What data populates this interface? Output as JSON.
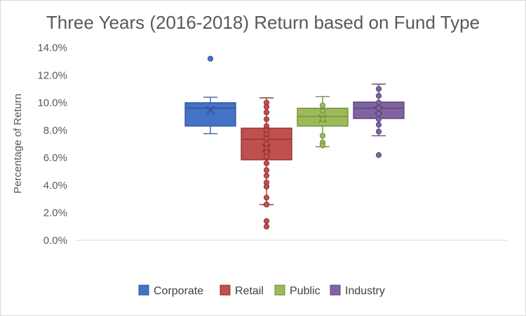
{
  "chart_data": {
    "type": "box",
    "title": "Three Years (2016-2018) Return based on Fund Type",
    "ylabel": "Percentage of Return",
    "xlabel": "",
    "ylim": [
      0.0,
      14.0
    ],
    "yticks": [
      0.0,
      2.0,
      4.0,
      6.0,
      8.0,
      10.0,
      12.0,
      14.0
    ],
    "ytick_labels": [
      "0.0%",
      "2.0%",
      "4.0%",
      "6.0%",
      "8.0%",
      "10.0%",
      "12.0%",
      "14.0%"
    ],
    "grid": false,
    "legend_position": "bottom",
    "series": [
      {
        "name": "Corporate",
        "color": "#4472c4",
        "stroke": "#2f5597",
        "q1": 8.3,
        "median": 9.6,
        "q3": 10.0,
        "whisker_low": 7.75,
        "whisker_high": 10.4,
        "mean": 9.45,
        "points": [
          13.2
        ]
      },
      {
        "name": "Retail",
        "color": "#c0504d",
        "stroke": "#8b2f2d",
        "q1": 5.85,
        "median": 7.35,
        "q3": 8.15,
        "whisker_low": 2.6,
        "whisker_high": 10.35,
        "mean": 6.7,
        "points": [
          10.0,
          9.7,
          9.3,
          8.8,
          8.3,
          8.0,
          7.7,
          7.4,
          7.0,
          6.7,
          6.4,
          6.1,
          5.6,
          5.1,
          4.7,
          4.2,
          3.9,
          3.1,
          2.6,
          1.4,
          1.0
        ]
      },
      {
        "name": "Public",
        "color": "#9bbb59",
        "stroke": "#6f8a3a",
        "q1": 8.3,
        "median": 9.0,
        "q3": 9.6,
        "whisker_low": 6.8,
        "whisker_high": 10.45,
        "mean": 8.85,
        "points": [
          9.8,
          9.4,
          8.8,
          7.6,
          7.1,
          6.9
        ]
      },
      {
        "name": "Industry",
        "color": "#8064a2",
        "stroke": "#5b4275",
        "q1": 8.85,
        "median": 9.6,
        "q3": 10.05,
        "whisker_low": 7.6,
        "whisker_high": 11.35,
        "mean": 9.45,
        "points": [
          11.0,
          10.5,
          10.0,
          9.6,
          9.2,
          8.8,
          8.4,
          7.9,
          6.2
        ]
      }
    ]
  }
}
